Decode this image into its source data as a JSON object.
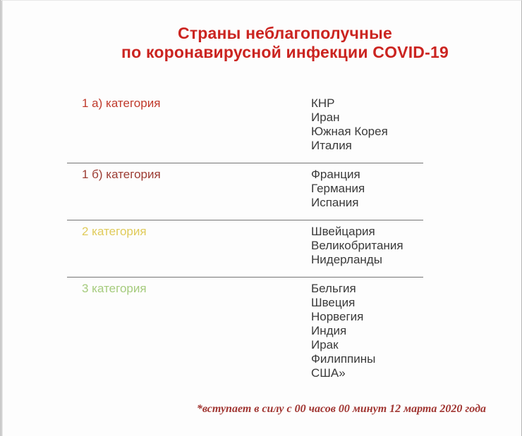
{
  "title": {
    "line1": "Страны неблагополучные",
    "line2": "по коронавирусной инфекции COVID-19"
  },
  "sections": [
    {
      "label": "1 а) категория",
      "color_key": "category_1a",
      "countries": [
        "КНР",
        "Иран",
        "Южная Корея",
        "Италия"
      ]
    },
    {
      "label": "1 б) категория",
      "color_key": "category_1b",
      "countries": [
        "Франция",
        "Германия",
        "Испания"
      ]
    },
    {
      "label": "2 категория",
      "color_key": "category_2",
      "countries": [
        "Швейцария",
        "Великобритания",
        "Нидерланды"
      ]
    },
    {
      "label": "3 категория",
      "color_key": "category_3",
      "countries": [
        "Бельгия",
        "Швеция",
        "Норвегия",
        "Индия",
        "Ирак",
        "Филиппины",
        "США»"
      ]
    }
  ],
  "footnote": {
    "text": "*вступает в силу с 00 часов 00 минут 12 марта 2020 года"
  },
  "colors": {
    "title": "#cb2420",
    "category_1a": "#c0392b",
    "category_1b": "#9c3b32",
    "category_2": "#e0cb5a",
    "category_3": "#a5cb7d",
    "country_text": "#3a3a3a",
    "divider": "#757575",
    "footnote": "#a03531",
    "background": "#fdfdfd"
  }
}
